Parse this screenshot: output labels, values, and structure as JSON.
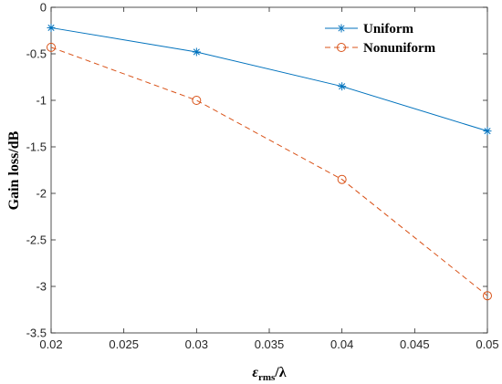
{
  "chart_data": {
    "type": "line",
    "x": [
      0.02,
      0.03,
      0.04,
      0.05
    ],
    "series": [
      {
        "name": "Uniform",
        "values": [
          -0.22,
          -0.48,
          -0.85,
          -1.33
        ],
        "color": "#0072BD",
        "style": "solid",
        "marker": "asterisk"
      },
      {
        "name": "Nonuniform",
        "values": [
          -0.43,
          -1.0,
          -1.85,
          -3.1
        ],
        "color": "#D95319",
        "style": "dashed",
        "marker": "circle"
      }
    ],
    "xlabel": "ε",
    "xlabel_sub": "rms",
    "xlabel_tail": "/λ",
    "ylabel": "Gain loss/dB",
    "xlim": [
      0.02,
      0.05
    ],
    "ylim": [
      -3.5,
      0
    ],
    "xticks": [
      "0.02",
      "0.025",
      "0.03",
      "0.035",
      "0.04",
      "0.045",
      "0.05"
    ],
    "yticks": [
      "0",
      "-0.5",
      "-1",
      "-1.5",
      "-2",
      "-2.5",
      "-3",
      "-3.5"
    ],
    "legend_position": "top-right",
    "grid": false
  }
}
